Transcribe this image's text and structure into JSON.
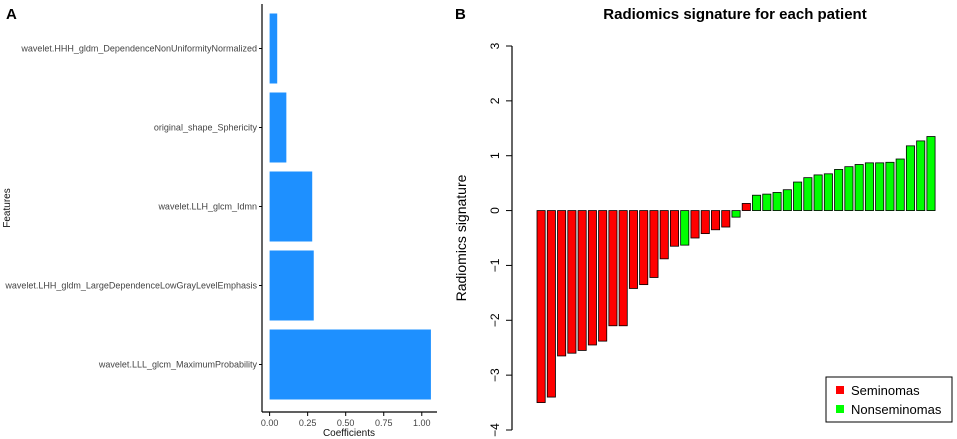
{
  "chart_data": [
    {
      "panel_label": "A",
      "type": "bar",
      "orientation": "horizontal",
      "categories": [
        "wavelet.HHH_gldm_DependenceNonUniformityNormalized",
        "original_shape_Sphericity",
        "wavelet.LLH_glcm_Idmn",
        "wavelet.LHH_gldm_LargeDependenceLowGrayLevelEmphasis",
        "wavelet.LLL_glcm_MaximumProbability"
      ],
      "values": [
        0.05,
        0.11,
        0.28,
        0.29,
        1.06
      ],
      "xlabel": "Coefficients",
      "ylabel": "Features",
      "xlim": [
        -0.05,
        1.1
      ],
      "xticks": [
        "0.00",
        "0.25",
        "0.50",
        "0.75",
        "1.00"
      ],
      "color": "#1E90FF"
    },
    {
      "panel_label": "B",
      "type": "bar",
      "title": "Radiomics signature for each patient",
      "ylabel": "Radiomics signature",
      "ylim": [
        -4,
        3
      ],
      "yticks": [
        "−4",
        "−3",
        "−2",
        "−1",
        "0",
        "1",
        "2",
        "3"
      ],
      "values": [
        -3.5,
        -3.4,
        -2.65,
        -2.6,
        -2.55,
        -2.45,
        -2.38,
        -2.1,
        -2.1,
        -1.42,
        -1.35,
        -1.22,
        -0.88,
        -0.65,
        -0.63,
        -0.5,
        -0.42,
        -0.35,
        -0.3,
        -0.12,
        0.13,
        0.28,
        0.3,
        0.33,
        0.38,
        0.52,
        0.6,
        0.65,
        0.67,
        0.75,
        0.8,
        0.84,
        0.87,
        0.87,
        0.88,
        0.94,
        1.18,
        1.27,
        1.35
      ],
      "groups": [
        "S",
        "S",
        "S",
        "S",
        "S",
        "S",
        "S",
        "S",
        "S",
        "S",
        "S",
        "S",
        "S",
        "S",
        "N",
        "S",
        "S",
        "S",
        "S",
        "N",
        "S",
        "N",
        "N",
        "N",
        "N",
        "N",
        "N",
        "N",
        "N",
        "N",
        "N",
        "N",
        "N",
        "N",
        "N",
        "N",
        "N",
        "N",
        "N"
      ],
      "series": [
        {
          "name": "Seminomas",
          "key": "S",
          "color": "#FF0000"
        },
        {
          "name": "Nonseminomas",
          "key": "N",
          "color": "#00FF00"
        }
      ],
      "legend_position": "bottom-right"
    }
  ]
}
